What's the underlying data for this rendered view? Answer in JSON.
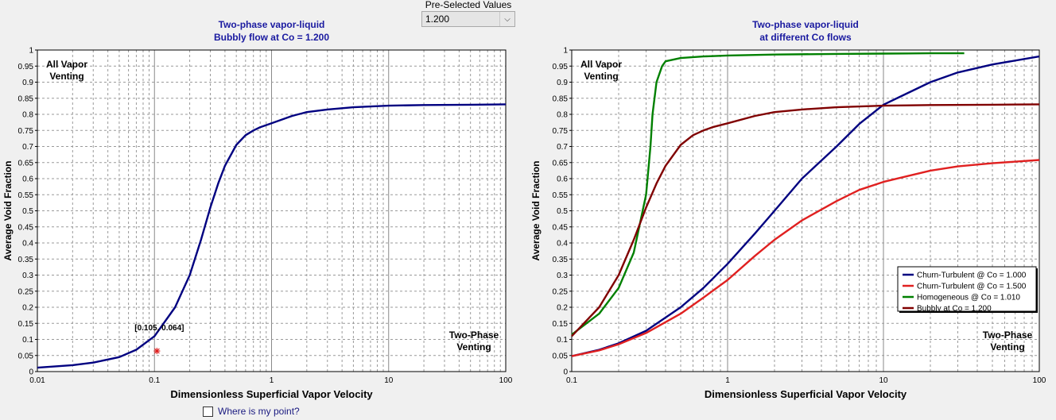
{
  "dropdown": {
    "label": "Pre-Selected Values",
    "value": "1.200"
  },
  "checkbox": {
    "label": "Where is my point?",
    "checked": false
  },
  "chart_data": [
    {
      "type": "line",
      "title": "Two-phase vapor-liquid",
      "subtitle": "Bubbly flow at Co = 1.200",
      "xlabel": "Dimensionless Superficial Vapor Velocity",
      "ylabel": "Average Void Fraction",
      "xscale": "log",
      "xlim": [
        0.01,
        100
      ],
      "ylim": [
        0,
        1
      ],
      "xticks": [
        "0.01",
        "0.1",
        "1",
        "10",
        "100"
      ],
      "yticks": [
        "0",
        "0.05",
        "0.1",
        "0.15",
        "0.2",
        "0.25",
        "0.3",
        "0.35",
        "0.4",
        "0.45",
        "0.5",
        "0.55",
        "0.6",
        "0.65",
        "0.7",
        "0.75",
        "0.8",
        "0.85",
        "0.9",
        "0.95",
        "1"
      ],
      "grid": true,
      "annotations": [
        {
          "text": "All Vapor",
          "line2": "Venting",
          "position": "top-left"
        },
        {
          "text": "Two-Phase",
          "line2": "Venting",
          "position": "bottom-right"
        }
      ],
      "point": {
        "x": 0.105,
        "y": 0.064,
        "label": "[0.105, 0.064]",
        "color": "#e02020"
      },
      "series": [
        {
          "color": "#000080",
          "x": [
            0.01,
            0.02,
            0.03,
            0.05,
            0.07,
            0.1,
            0.15,
            0.2,
            0.25,
            0.3,
            0.35,
            0.4,
            0.5,
            0.6,
            0.7,
            0.8,
            1,
            1.5,
            2,
            3,
            5,
            10,
            20,
            50,
            100
          ],
          "y": [
            0.012,
            0.02,
            0.028,
            0.045,
            0.068,
            0.11,
            0.2,
            0.3,
            0.41,
            0.51,
            0.585,
            0.64,
            0.705,
            0.735,
            0.75,
            0.76,
            0.772,
            0.795,
            0.807,
            0.815,
            0.822,
            0.827,
            0.829,
            0.83,
            0.831
          ]
        }
      ]
    },
    {
      "type": "line",
      "title": "Two-phase vapor-liquid",
      "subtitle": "at different Co flows",
      "xlabel": "Dimensionless Superficial Vapor Velocity",
      "ylabel": "Average Void Fraction",
      "xscale": "log",
      "xlim": [
        0.1,
        100
      ],
      "ylim": [
        0,
        1
      ],
      "xticks": [
        "0.1",
        "1",
        "10",
        "100"
      ],
      "yticks": [
        "0",
        "0.05",
        "0.1",
        "0.15",
        "0.2",
        "0.25",
        "0.3",
        "0.35",
        "0.4",
        "0.45",
        "0.5",
        "0.55",
        "0.6",
        "0.65",
        "0.7",
        "0.75",
        "0.8",
        "0.85",
        "0.9",
        "0.95",
        "1"
      ],
      "grid": true,
      "legend_position": "bottom-right",
      "annotations": [
        {
          "text": "All Vapor",
          "line2": "Venting",
          "position": "top-left"
        },
        {
          "text": "Two-Phase",
          "line2": "Venting",
          "position": "bottom-right"
        }
      ],
      "series": [
        {
          "name": "Churn-Turbulent @ Co = 1.000",
          "color": "#000080",
          "x": [
            0.1,
            0.15,
            0.2,
            0.3,
            0.5,
            0.7,
            1,
            1.5,
            2,
            3,
            5,
            7,
            10,
            20,
            30,
            50,
            100
          ],
          "y": [
            0.048,
            0.068,
            0.088,
            0.127,
            0.2,
            0.26,
            0.335,
            0.43,
            0.5,
            0.6,
            0.7,
            0.77,
            0.83,
            0.9,
            0.93,
            0.955,
            0.98
          ]
        },
        {
          "name": "Churn-Turbulent @ Co = 1.500",
          "color": "#e02020",
          "x": [
            0.1,
            0.15,
            0.2,
            0.3,
            0.5,
            0.7,
            1,
            1.5,
            2,
            3,
            5,
            7,
            10,
            20,
            30,
            50,
            100
          ],
          "y": [
            0.048,
            0.066,
            0.085,
            0.12,
            0.18,
            0.23,
            0.285,
            0.36,
            0.41,
            0.47,
            0.53,
            0.565,
            0.59,
            0.625,
            0.638,
            0.648,
            0.658
          ]
        },
        {
          "name": "Homogeneous @ Co = 1.010",
          "color": "#008000",
          "x": [
            0.1,
            0.15,
            0.2,
            0.25,
            0.3,
            0.32,
            0.33,
            0.35,
            0.38,
            0.4,
            0.5,
            0.7,
            1,
            2,
            5,
            10,
            20,
            33
          ],
          "y": [
            0.115,
            0.18,
            0.26,
            0.37,
            0.55,
            0.7,
            0.8,
            0.9,
            0.95,
            0.965,
            0.975,
            0.98,
            0.983,
            0.986,
            0.988,
            0.989,
            0.99,
            0.99
          ]
        },
        {
          "name": "Bubbly at Co = 1.200",
          "color": "#800000",
          "x": [
            0.1,
            0.15,
            0.2,
            0.25,
            0.3,
            0.35,
            0.4,
            0.5,
            0.6,
            0.7,
            0.8,
            1,
            1.5,
            2,
            3,
            5,
            10,
            20,
            50,
            100
          ],
          "y": [
            0.11,
            0.2,
            0.3,
            0.41,
            0.51,
            0.585,
            0.64,
            0.705,
            0.735,
            0.75,
            0.76,
            0.772,
            0.795,
            0.807,
            0.815,
            0.822,
            0.827,
            0.829,
            0.83,
            0.831
          ]
        }
      ]
    }
  ]
}
